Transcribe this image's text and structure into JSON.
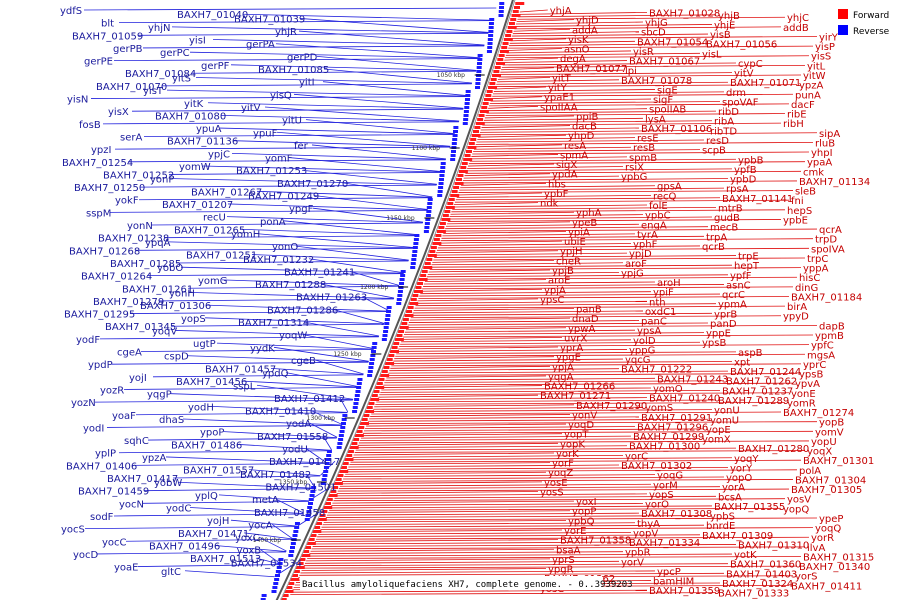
{
  "legend": [
    {
      "label": "Forward",
      "color": "#ff0000"
    },
    {
      "label": "Reverse",
      "color": "#0000ff"
    }
  ],
  "caption": "Bacillus amyloliquefaciens XH7, complete genome. - 0..3939203",
  "scale_ticks": [
    "1050 kbp",
    "1100 kbp",
    "1150 kbp",
    "1200 kbp",
    "1250 kbp",
    "1300 kbp",
    "1350 kbp",
    "1400 kbp"
  ],
  "reverse_labels": [
    "ydfS",
    "BAXH7_01040",
    "BAXH7_01039",
    "blt",
    "yhjN",
    "yhjR",
    "BAXH7_01059",
    "yisI",
    "gerPA",
    "gerPB",
    "gerPC",
    "gerPD",
    "gerPE",
    "gerPF",
    "BAXH7_01085",
    "BAXH7_01084",
    "yitS",
    "yitI",
    "BAXH7_01070",
    "yisT",
    "yisQ",
    "yisN",
    "yitK",
    "yitV",
    "yisX",
    "BAXH7_01080",
    "yitU",
    "fosB",
    "ypuA",
    "ypuF",
    "serA",
    "BAXH7_01136",
    "fer",
    "ypzI",
    "ypjC",
    "yomF",
    "BAXH7_01254",
    "yomW",
    "BAXH7_01253",
    "BAXH7_01252",
    "yonP",
    "BAXH7_01270",
    "BAXH7_01250",
    "BAXH7_01267",
    "BAXH7_01249",
    "yokF",
    "BAXH7_01207",
    "ypgF",
    "sspM",
    "recU",
    "ponA",
    "yonN",
    "BAXH7_01265",
    "yomH",
    "BAXH7_01238",
    "ypqA",
    "yonO",
    "BAXH7_01268",
    "BAXH7_01251",
    "BAXH7_01232",
    "BAXH7_01285",
    "yobO",
    "BAXH7_01241",
    "BAXH7_01264",
    "yomG",
    "BAXH7_01288",
    "BAXH7_01261",
    "yonH",
    "BAXH7_01263",
    "BAXH7_01279",
    "BAXH7_01306",
    "BAXH7_01286",
    "BAXH7_01295",
    "yopS",
    "BAXH7_01314",
    "BAXH7_01345",
    "yoqV",
    "yoqW",
    "yodF",
    "ugtP",
    "yydK",
    "cgeA",
    "cspD",
    "cgeB",
    "ypdP",
    "BAXH7_01457",
    "ypdQ",
    "yojI",
    "BAXH7_01456",
    "sspL",
    "yozR",
    "yqgP",
    "BAXH7_01412",
    "yozN",
    "yodH",
    "BAXH7_01410",
    "yoaF",
    "dhaS",
    "yodA",
    "yodI",
    "ypoP",
    "BAXH7_01558",
    "sqhC",
    "BAXH7_01486",
    "yodU",
    "yplP",
    "ypzA",
    "BAXH7_01417",
    "BAXH7_01406",
    "BAXH7_01557",
    "BAXH7_01482",
    "BAXH7_01417",
    "yobW",
    "BAXH7_01501",
    "BAXH7_01459",
    "yplQ",
    "metA",
    "yocN",
    "yodC",
    "BAXH7_01458",
    "sodF",
    "yojH",
    "yocA",
    "yocS",
    "BAXH7_01471",
    "yoxC",
    "yocC",
    "BAXH7_01496",
    "yoxB",
    "yocD",
    "BAXH7_01513",
    "BAXH7_01534",
    "yoaE",
    "gltC"
  ],
  "forward_labels": [
    "yhjA",
    "BAXH7_01028",
    "yhjB",
    "yhjC",
    "yhjD",
    "yhjG",
    "yhjE",
    "addB",
    "addA",
    "sbcD",
    "yisB",
    "yirY",
    "yisK",
    "BAXH7_01054",
    "BAXH7_01056",
    "yisP",
    "asnO",
    "yisR",
    "yisL",
    "yisS",
    "degA",
    "BAXH7_01067",
    "cypC",
    "yitL",
    "BAXH7_01077",
    "lpi",
    "yitV",
    "yitW",
    "yitT",
    "BAXH7_01078",
    "BAXH7_01071",
    "ypzA",
    "yitY",
    "sigE",
    "drm",
    "punA",
    "ypaE1",
    "sigF",
    "spoVAF",
    "dacF",
    "spoIIAA",
    "spoIIAB",
    "ribD",
    "ribE",
    "ppiB",
    "lysA",
    "ribA",
    "ribH",
    "dacB",
    "BAXH7_01106",
    "ribTD",
    "sipA",
    "yhpD",
    "resE",
    "resD",
    "rluB",
    "resA",
    "resB",
    "scpB",
    "yhpI",
    "spmA",
    "spmB",
    "ypbB",
    "ypaA",
    "sigX",
    "rsiX",
    "ypfB",
    "cmk",
    "ypdA",
    "ypbG",
    "ypbD",
    "BAXH7_01134",
    "hbs",
    "gpsA",
    "rpsA",
    "sleB",
    "ypbF",
    "recQ",
    "BAXH7_01141",
    "fni",
    "ndk",
    "folE",
    "mtrB",
    "hepS",
    "yphA",
    "ypbC",
    "gudB",
    "ypbE",
    "ypeB",
    "engA",
    "mecB",
    "qcrA",
    "ypiA",
    "tyrA",
    "trpA",
    "trpD",
    "ubiE",
    "yphF",
    "qcrB",
    "spoIVA",
    "ypjH",
    "ypjD",
    "trpE",
    "trpC",
    "cheR",
    "aroF",
    "hepT",
    "yppA",
    "ypjB",
    "ypjG",
    "ypfF",
    "hisC",
    "aroE",
    "aroH",
    "asnC",
    "dinG",
    "ypjA",
    "ypiF",
    "qcrC",
    "BAXH7_01184",
    "ypsC",
    "nth",
    "ypmA",
    "birA",
    "panB",
    "oxdC1",
    "yprB",
    "ypyD",
    "dnaD",
    "panC",
    "panD",
    "dapB",
    "ypwA",
    "ypsA",
    "yppE",
    "ypmB",
    "uvrX",
    "yolD",
    "ypsB",
    "ypfC",
    "yprA",
    "yppG",
    "aspB",
    "mgsA",
    "ypgE",
    "yqcG",
    "xpt",
    "yprC",
    "ypjA",
    "BAXH7_01222",
    "BAXH7_01244",
    "ypsB",
    "yqgA",
    "BAXH7_01243",
    "BAXH7_01262",
    "ypvA",
    "BAXH7_01266",
    "yomO",
    "BAXH7_01237",
    "yonE",
    "BAXH7_01271",
    "BAXH7_01240",
    "BAXH7_01289",
    "yomR",
    "BAXH7_01290",
    "yomS",
    "yonU",
    "BAXH7_01274",
    "yonV",
    "BAXH7_01291",
    "yomU",
    "yopB",
    "yoqD",
    "BAXH7_01296",
    "yopE",
    "yomV",
    "yopT",
    "BAXH7_01299",
    "yomX",
    "yopU",
    "yopK",
    "BAXH7_01300",
    "BAXH7_01280",
    "yoqX",
    "yorK",
    "yorC",
    "yoqY",
    "BAXH7_01301",
    "yorF",
    "BAXH7_01302",
    "yorY",
    "polA",
    "yoqZ",
    "yoqG",
    "yopO",
    "BAXH7_01304",
    "yosE",
    "yorM",
    "yorA",
    "BAXH7_01305",
    "yosS",
    "yopS",
    "bcsA",
    "yosV",
    "yoxI",
    "yorO",
    "BAXH7_01355",
    "yopQ",
    "yopP",
    "BAXH7_01308",
    "ypbS",
    "ypeP",
    "ypbQ",
    "thyA",
    "bnrdE",
    "yoqQ",
    "yorE",
    "yopV",
    "BAXH7_01309",
    "yorR",
    "BAXH7_01358",
    "BAXH7_01334",
    "BAXH7_01310",
    "ilvA",
    "bsaA",
    "ypbR",
    "yotK",
    "BAXH7_01315",
    "yprS",
    "yorV",
    "BAXH7_01360",
    "BAXH7_01340",
    "ypgR",
    "ypcP",
    "BAXH7_01403",
    "yorS",
    "BAXH7_01362",
    "bamHIM",
    "BAXH7_01324",
    "BAXH7_01411",
    "yosC",
    "BAXH7_01359",
    "BAXH7_01333"
  ]
}
